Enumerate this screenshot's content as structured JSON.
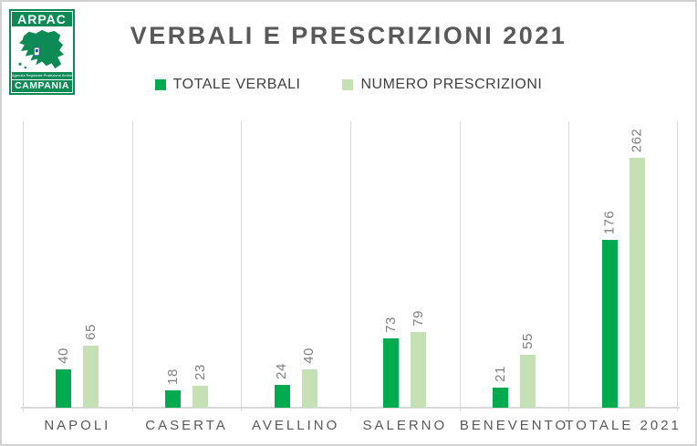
{
  "window": {
    "background": "#FFFFFF",
    "border_color": "#D2D2D2"
  },
  "logo": {
    "acronym": "ARPAC",
    "agency_line": "Agenzia Regionale Protezione Ambientale",
    "region": "CAMPANIA",
    "green": "#0E8A56"
  },
  "title": "VERBALI E PRESCRIZIONI 2021",
  "legend": {
    "items": [
      {
        "label": "TOTALE VERBALI",
        "color": "#00AB50"
      },
      {
        "label": "NUMERO PRESCRIZIONI",
        "color": "#C5E0B4"
      }
    ]
  },
  "chart_data": {
    "type": "bar",
    "title": "VERBALI E PRESCRIZIONI 2021",
    "categories": [
      "NAPOLI",
      "CASERTA",
      "AVELLINO",
      "SALERNO",
      "BENEVENTO",
      "TOTALE 2021"
    ],
    "series": [
      {
        "name": "TOTALE VERBALI",
        "color": "#00AB50",
        "values": [
          40,
          18,
          24,
          73,
          21,
          176
        ]
      },
      {
        "name": "NUMERO PRESCRIZIONI",
        "color": "#C5E0B4",
        "values": [
          65,
          23,
          40,
          79,
          55,
          262
        ]
      }
    ],
    "ylim": [
      0,
      300
    ],
    "grid": "vertical-category-separators",
    "legend_position": "top",
    "data_labels": "rotated-90-above-bars",
    "axis_color": "#D9D9D9",
    "value_label_color": "#7F7F7F",
    "category_label_color": "#595959"
  }
}
